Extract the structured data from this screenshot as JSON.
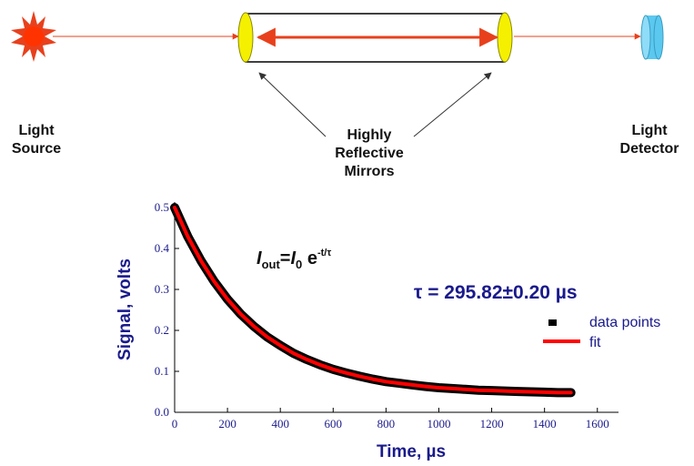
{
  "diagram": {
    "source_label": [
      "Light",
      "Source"
    ],
    "mirrors_label": [
      "Highly",
      "Reflective",
      "Mirrors"
    ],
    "detector_label": [
      "Light",
      "Detector"
    ]
  },
  "chart_data": {
    "type": "line",
    "equation": {
      "i_out": "I",
      "out_sub": "out",
      "eq": "=",
      "i_0": "I",
      "zero_sub": "0",
      "e": " e",
      "exponent": "-t/τ"
    },
    "annotation": "τ = 295.82±0.20 µs",
    "x_label": "Time, µs",
    "y_label": "Signal, volts",
    "x": [
      0,
      50,
      100,
      150,
      200,
      250,
      300,
      350,
      400,
      450,
      500,
      550,
      600,
      650,
      700,
      750,
      800,
      850,
      900,
      950,
      1000,
      1050,
      1100,
      1150,
      1200,
      1250,
      1300,
      1350,
      1400,
      1450,
      1500
    ],
    "series": [
      {
        "name": "data points",
        "color": "#000000",
        "values": [
          0.5,
          0.429,
          0.37,
          0.319,
          0.276,
          0.24,
          0.21,
          0.184,
          0.163,
          0.144,
          0.129,
          0.116,
          0.105,
          0.096,
          0.088,
          0.081,
          0.075,
          0.071,
          0.067,
          0.063,
          0.06,
          0.058,
          0.056,
          0.054,
          0.053,
          0.052,
          0.051,
          0.05,
          0.049,
          0.048,
          0.048
        ]
      },
      {
        "name": "fit",
        "color": "#ff0000",
        "values": [
          0.5,
          0.429,
          0.37,
          0.319,
          0.276,
          0.24,
          0.21,
          0.184,
          0.163,
          0.144,
          0.129,
          0.116,
          0.105,
          0.096,
          0.088,
          0.081,
          0.075,
          0.071,
          0.067,
          0.063,
          0.06,
          0.058,
          0.056,
          0.054,
          0.053,
          0.052,
          0.051,
          0.05,
          0.049,
          0.048,
          0.048
        ]
      }
    ],
    "xlim": [
      0,
      1680
    ],
    "ylim": [
      0,
      0.5
    ],
    "xticks": [
      0,
      200,
      400,
      600,
      800,
      1000,
      1200,
      1400,
      1600
    ],
    "yticks": [
      {
        "value": 0,
        "label": "0.0"
      },
      0.1,
      0.2,
      0.3,
      0.4,
      0.5
    ]
  }
}
